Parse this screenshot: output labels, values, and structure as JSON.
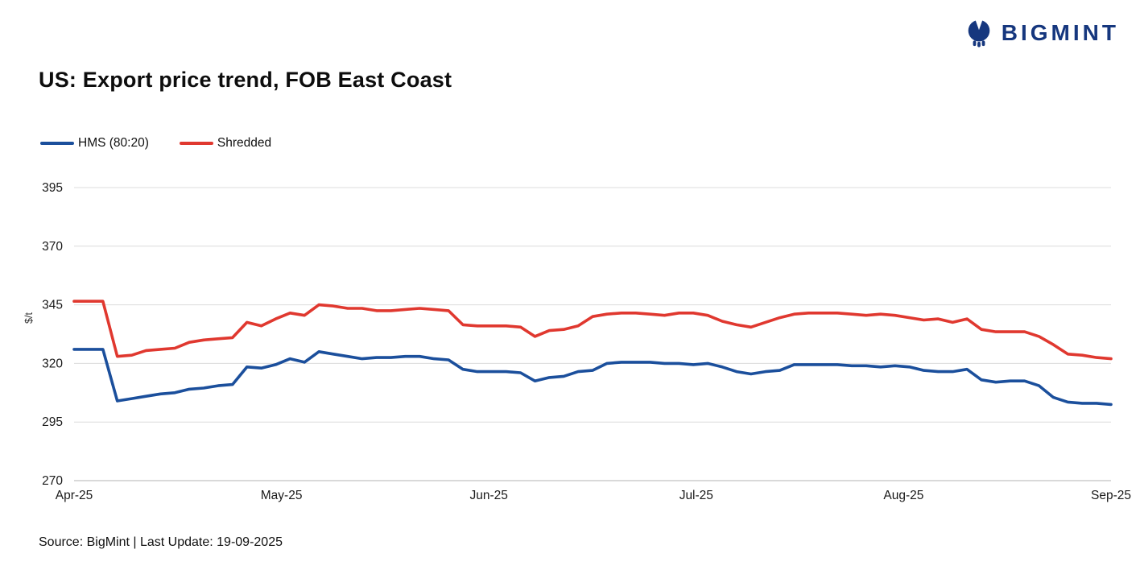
{
  "logo": {
    "text": "BIGMINT"
  },
  "title": "US: Export price trend, FOB East Coast",
  "footer": "Source: BigMint | Last Update: 19-09-2025",
  "chart_data": {
    "type": "line",
    "title": "US: Export price trend, FOB East Coast",
    "xlabel": "",
    "ylabel": "$/t",
    "ylim": [
      270,
      395
    ],
    "yticks": [
      270,
      295,
      320,
      345,
      370,
      395
    ],
    "xticklabels": [
      "Apr-25",
      "May-25",
      "Jun-25",
      "Jul-25",
      "Aug-25",
      "Sep-25"
    ],
    "grid": "horizontal",
    "legend_position": "top-left",
    "series": [
      {
        "name": "HMS (80:20)",
        "color": "#1b4f9c",
        "values": [
          326,
          326,
          326,
          304,
          305,
          306,
          307,
          307.5,
          309,
          309.5,
          310.5,
          311,
          318.5,
          318,
          319.5,
          322,
          320.5,
          325,
          324,
          323,
          322,
          322.5,
          322.5,
          323,
          323,
          322,
          321.5,
          317.5,
          316.5,
          316.5,
          316.5,
          316,
          312.5,
          314,
          314.5,
          316.5,
          317,
          320,
          320.5,
          320.5,
          320.5,
          320,
          320,
          319.5,
          320,
          318.5,
          316.5,
          315.5,
          316.5,
          317,
          319.5,
          319.5,
          319.5,
          319.5,
          319,
          319,
          318.5,
          319,
          318.5,
          317,
          316.5,
          316.5,
          317.5,
          313,
          312,
          312.5,
          312.5,
          310.5,
          305.5,
          303.5,
          303,
          303,
          302.5
        ]
      },
      {
        "name": "Shredded",
        "color": "#e0382f",
        "values": [
          346.5,
          346.5,
          346.5,
          323,
          323.5,
          325.5,
          326,
          326.5,
          329,
          330,
          330.5,
          331,
          337.5,
          336,
          339,
          341.5,
          340.5,
          345,
          344.5,
          343.5,
          343.5,
          342.5,
          342.5,
          343,
          343.5,
          343,
          342.5,
          336.5,
          336,
          336,
          336,
          335.5,
          331.5,
          334,
          334.5,
          336,
          340,
          341,
          341.5,
          341.5,
          341,
          340.5,
          341.5,
          341.5,
          340.5,
          338,
          336.5,
          335.5,
          337.5,
          339.5,
          341,
          341.5,
          341.5,
          341.5,
          341,
          340.5,
          341,
          340.5,
          339.5,
          338.5,
          339,
          337.5,
          339,
          334.5,
          333.5,
          333.5,
          333.5,
          331.5,
          328,
          324,
          323.5,
          322.5,
          322
        ]
      }
    ]
  }
}
